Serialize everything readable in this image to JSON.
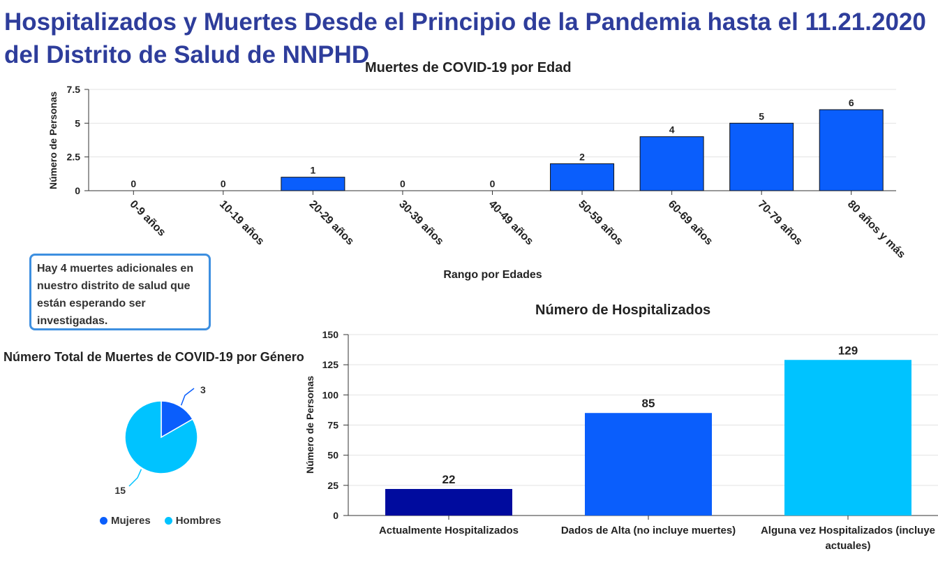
{
  "page": {
    "title": "Hospitalizados y Muertes Desde el Principio de la Pandemia hasta el 11.21.2020 del Distrito de Salud de NNPHD",
    "note": "Hay 4 muertes adicionales en nuestro distrito de salud que están esperando ser investigadas."
  },
  "colors": {
    "title": "#2e3d9b",
    "bar_blue": "#0a5efc",
    "bar_navy": "#000b9e",
    "bar_cyan": "#00c3ff",
    "note_border": "#3d8fe0"
  },
  "chart_data": [
    {
      "type": "bar",
      "title": "Muertes de COVID-19 por Edad",
      "xlabel": "Rango por Edades",
      "ylabel": "Número de Personas",
      "categories": [
        "0-9 años",
        "10-19 años",
        "20-29 años",
        "30-39 años",
        "40-49 años",
        "50-59 años",
        "60-69 años",
        "70-79 años",
        "80 años y más"
      ],
      "values": [
        0,
        0,
        1,
        0,
        0,
        2,
        4,
        5,
        6
      ],
      "ylim": [
        0,
        7.5
      ],
      "yticks": [
        "0",
        "2.5",
        "5",
        "7.5"
      ],
      "grid": true,
      "data_labels": true
    },
    {
      "type": "pie",
      "title": "Número Total de Muertes de COVID-19 por Género",
      "labels": [
        "Mujeres",
        "Hombres"
      ],
      "values": [
        3,
        15
      ],
      "colors": [
        "#0a5efc",
        "#00c3ff"
      ],
      "legend": "bottom"
    },
    {
      "type": "bar",
      "title": "Número de Hospitalizados",
      "xlabel": "",
      "ylabel": "Número de Personas",
      "categories": [
        "Actualmente Hospitalizados",
        "Dados de Alta (no incluye muertes)",
        "Alguna vez Hospitalizados (incluye actuales)"
      ],
      "values": [
        22,
        85,
        129
      ],
      "colors": [
        "#000b9e",
        "#0a5efc",
        "#00c3ff"
      ],
      "ylim": [
        0,
        150
      ],
      "yticks": [
        "0",
        "25",
        "50",
        "75",
        "100",
        "125",
        "150"
      ],
      "grid": true,
      "data_labels": true
    }
  ]
}
